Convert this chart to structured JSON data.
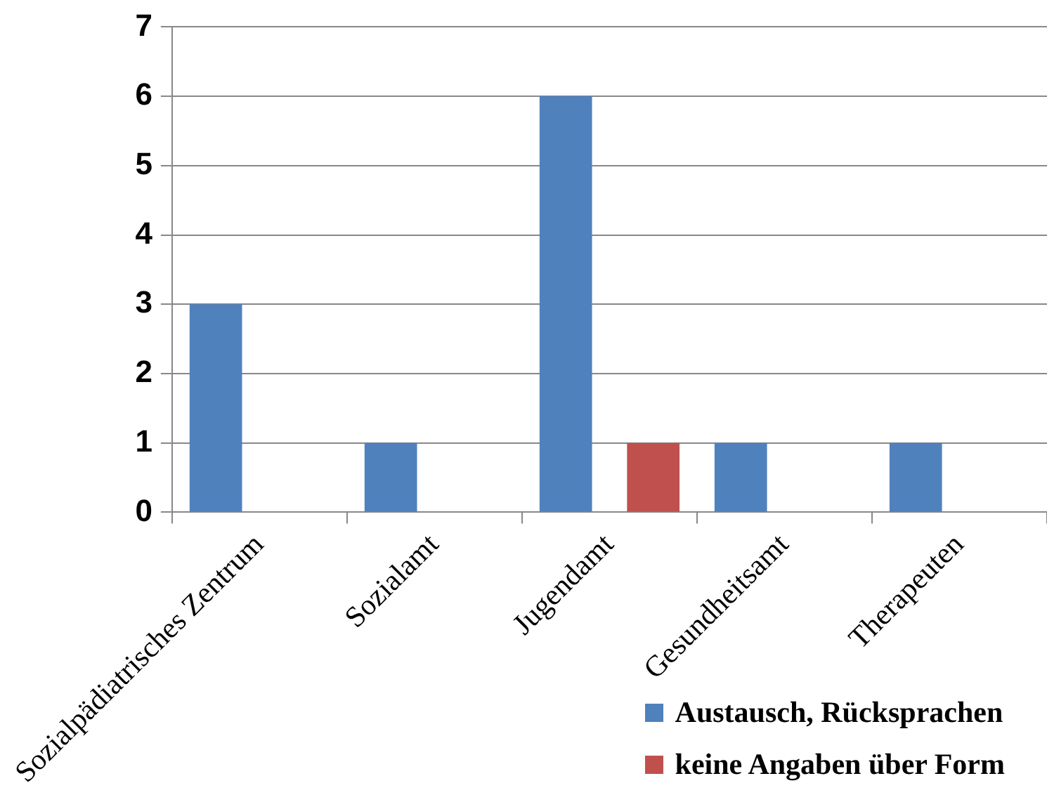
{
  "chart_data": {
    "type": "bar",
    "categories": [
      "Sozialpädiatrisches Zentrum",
      "Sozialamt",
      "Jugendamt",
      "Gesundheitsamt",
      "Therapeuten"
    ],
    "series": [
      {
        "name": "Austausch, Rücksprachen",
        "color": "#4f81bd",
        "values": [
          3,
          1,
          6,
          1,
          1
        ]
      },
      {
        "name": "keine Angaben über Form",
        "color": "#c0504d",
        "values": [
          0,
          0,
          1,
          0,
          0
        ]
      }
    ],
    "ylim": [
      0,
      7
    ],
    "yticks": [
      0,
      1,
      2,
      3,
      4,
      5,
      6,
      7
    ],
    "grid": "y",
    "legend": "bottom right"
  }
}
